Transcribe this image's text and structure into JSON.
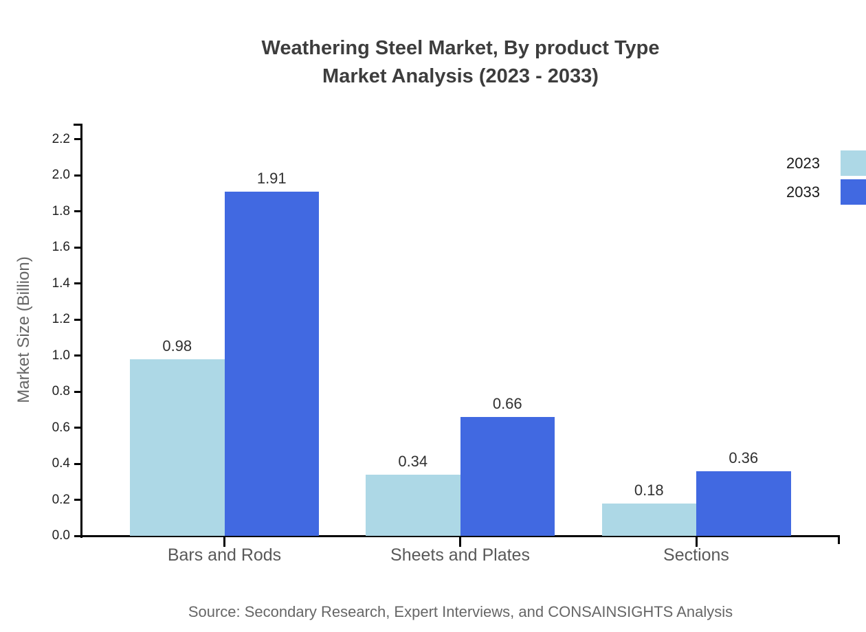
{
  "title": {
    "line1": "Weathering Steel Market, By product Type",
    "line2": "Market Analysis (2023 - 2033)"
  },
  "source": "Source: Secondary Research, Expert Interviews, and CONSAINSIGHTS Analysis",
  "chart_data": {
    "type": "bar",
    "title": "Weathering Steel Market, By product Type Market Analysis (2023 - 2033)",
    "categories": [
      "Bars and Rods",
      "Sheets and Plates",
      "Sections"
    ],
    "series": [
      {
        "name": "2023",
        "color": "#ADD8E6",
        "values": [
          0.98,
          0.34,
          0.18
        ]
      },
      {
        "name": "2033",
        "color": "#4169E1",
        "values": [
          1.91,
          0.66,
          0.36
        ]
      }
    ],
    "xlabel": "",
    "ylabel": "Market Size (Billion)",
    "ylim": [
      0,
      2.2
    ],
    "ytick_step": 0.2,
    "ytick_format_decimals": 1,
    "grid": false,
    "bar_labels": true,
    "legend_position": "top-right"
  },
  "colors": {
    "axis": "#000000",
    "title_text": "#3d3d3d",
    "tick_label_text": "#212121",
    "value_label_text": "#303030",
    "category_text": "#595959",
    "axis_title_text": "#666666",
    "source_text": "#666666",
    "background": "#ffffff"
  }
}
